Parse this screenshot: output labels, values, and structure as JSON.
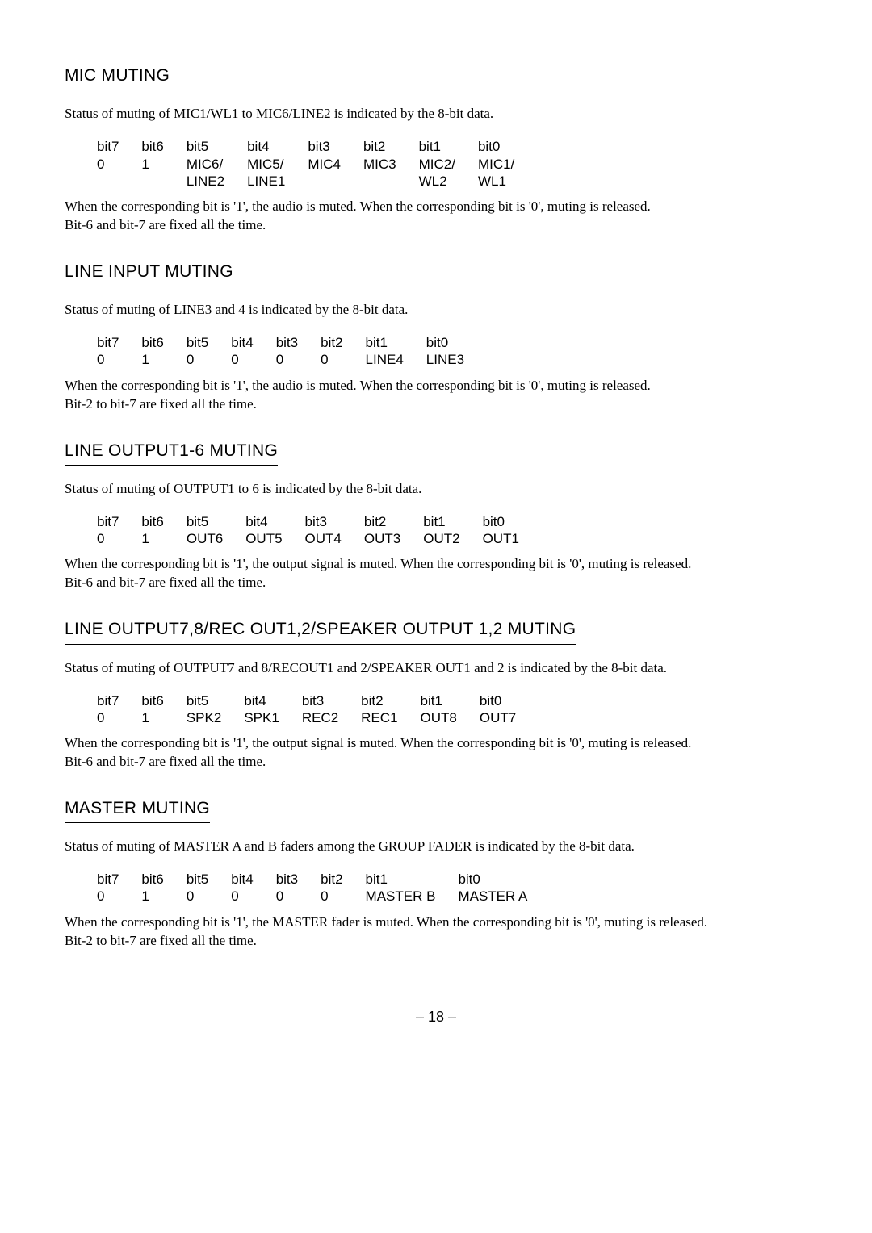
{
  "page_number": "– 18 –",
  "sections": [
    {
      "title": "MIC MUTING",
      "desc": "Status of muting of MIC1/WL1 to MIC6/LINE2 is indicated by the 8-bit data.",
      "closing1": "When the corresponding bit is '1', the audio is muted. When the corresponding bit is '0', muting is released.",
      "closing2": "Bit-6 and bit-7 are fixed all the time.",
      "bits": {
        "h": [
          "bit7",
          "bit6",
          "bit5",
          "bit4",
          "bit3",
          "bit2",
          "bit1",
          "bit0"
        ],
        "r1": [
          "0",
          "1",
          "MIC6/",
          "MIC5/",
          "MIC4",
          "MIC3",
          "MIC2/",
          "MIC1/"
        ],
        "r2": [
          "",
          "",
          "LINE2",
          "LINE1",
          "",
          "",
          "WL2",
          "WL1"
        ]
      }
    },
    {
      "title": "LINE INPUT MUTING",
      "desc": "Status of muting of LINE3 and 4 is indicated by the 8-bit data.",
      "closing1": "When the corresponding bit is '1', the audio is muted. When the corresponding bit is '0', muting is released.",
      "closing2": "Bit-2 to bit-7 are fixed all the time.",
      "bits": {
        "h": [
          "bit7",
          "bit6",
          "bit5",
          "bit4",
          "bit3",
          "bit2",
          "bit1",
          "bit0"
        ],
        "r1": [
          "0",
          "1",
          "0",
          "0",
          "0",
          "0",
          "LINE4",
          "LINE3"
        ]
      }
    },
    {
      "title": "LINE OUTPUT1-6 MUTING",
      "desc": " Status of muting of OUTPUT1 to 6 is indicated by the 8-bit data.",
      "closing1": "When the corresponding bit is '1', the output signal is muted. When the corresponding bit is '0', muting is released.",
      "closing2": "Bit-6 and bit-7 are fixed all the time.",
      "bits": {
        "h": [
          "bit7",
          "bit6",
          "bit5",
          "bit4",
          "bit3",
          "bit2",
          "bit1",
          "bit0"
        ],
        "r1": [
          "0",
          "1",
          "OUT6",
          "OUT5",
          "OUT4",
          "OUT3",
          "OUT2",
          "OUT1"
        ]
      }
    },
    {
      "title": "LINE OUTPUT7,8/REC OUT1,2/SPEAKER OUTPUT 1,2 MUTING",
      "desc": "Status of muting of OUTPUT7 and 8/RECOUT1 and 2/SPEAKER OUT1 and 2 is indicated by the 8-bit data.",
      "closing1": "When the corresponding bit is '1', the output signal is muted. When the corresponding bit is '0', muting is released.",
      "closing2": "Bit-6 and bit-7 are fixed all the time.",
      "bits": {
        "h": [
          "bit7",
          "bit6",
          "bit5",
          "bit4",
          "bit3",
          "bit2",
          "bit1",
          "bit0"
        ],
        "r1": [
          "0",
          "1",
          "SPK2",
          "SPK1",
          "REC2",
          "REC1",
          "OUT8",
          "OUT7"
        ]
      }
    },
    {
      "title": "MASTER MUTING",
      "desc": "Status of muting of MASTER A and B faders among the GROUP FADER is indicated by the 8-bit data.",
      "closing1": "When the corresponding bit is '1', the MASTER fader is muted. When the corresponding bit is '0', muting is released.",
      "closing2": "Bit-2 to bit-7 are fixed all the time.",
      "bits": {
        "h": [
          "bit7",
          "bit6",
          "bit5",
          "bit4",
          "bit3",
          "bit2",
          "bit1",
          "bit0"
        ],
        "r1": [
          "0",
          "1",
          "0",
          "0",
          "0",
          "0",
          "MASTER B",
          "MASTER A"
        ]
      }
    }
  ]
}
